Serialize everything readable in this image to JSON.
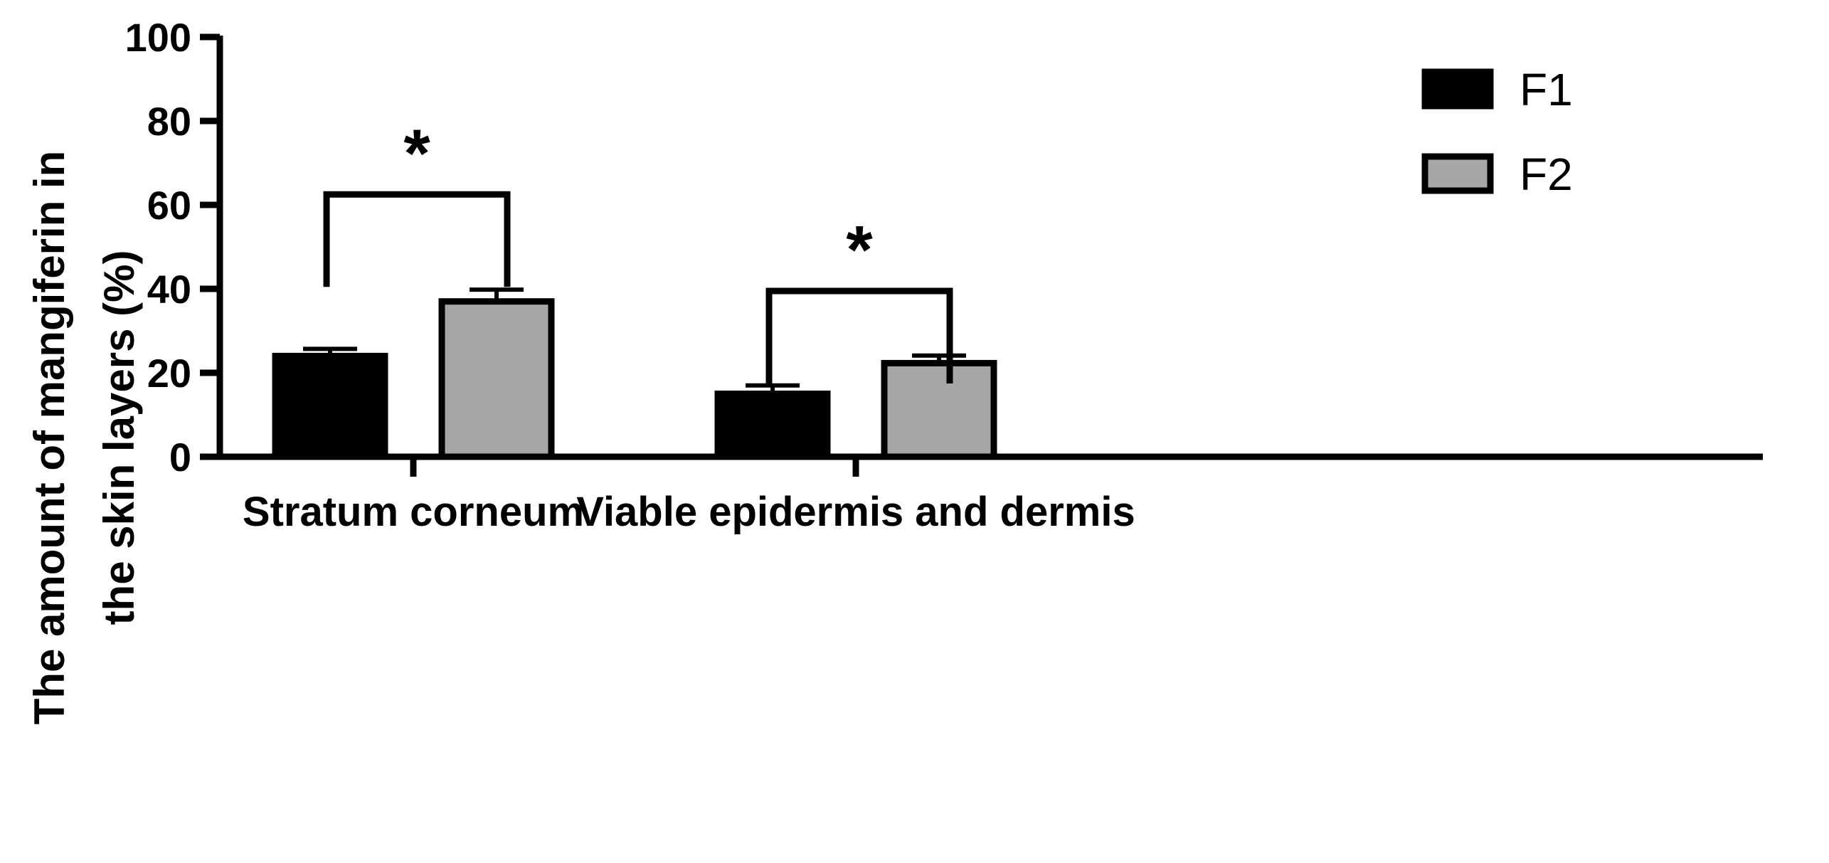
{
  "chart_data": {
    "type": "bar",
    "title": "",
    "ylabel_lines": [
      "The amount of mangiferin in",
      "the skin layers (%)"
    ],
    "xlabel": "",
    "ylim": [
      0,
      100
    ],
    "yticks": [
      0,
      20,
      40,
      60,
      80,
      100
    ],
    "categories": [
      "Stratum corneum",
      "Viable epidermis and dermis"
    ],
    "series": [
      {
        "name": "F1",
        "values": [
          24,
          15
        ],
        "errors": [
          1.7,
          2.0
        ],
        "color": "#000000"
      },
      {
        "name": "F2",
        "values": [
          37,
          22.3
        ],
        "errors": [
          2.8,
          1.8
        ],
        "color": "#a7a7aa"
      }
    ],
    "significance": [
      {
        "category": 0,
        "label": "*",
        "level": 62.5
      },
      {
        "category": 1,
        "label": "*",
        "level": 39.5
      }
    ],
    "legend_position": "top-right",
    "grid": false
  }
}
